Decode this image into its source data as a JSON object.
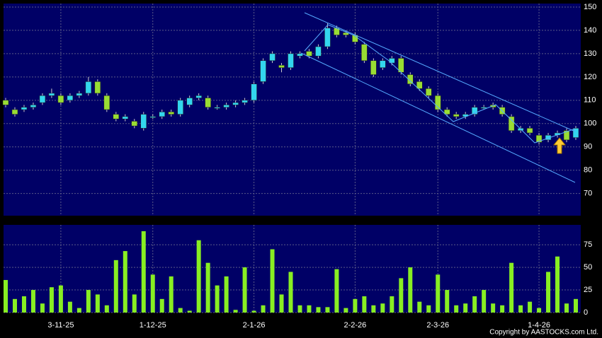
{
  "chart_data": [
    {
      "type": "candlestick",
      "categories": [
        null,
        null,
        null,
        null,
        null,
        null,
        "3-11-25",
        null,
        null,
        null,
        null,
        null,
        null,
        null,
        null,
        null,
        "1-12-25",
        null,
        null,
        null,
        null,
        null,
        null,
        null,
        null,
        null,
        null,
        "2-1-26",
        null,
        null,
        null,
        null,
        null,
        null,
        null,
        null,
        null,
        null,
        "2-2-26",
        null,
        null,
        null,
        null,
        null,
        null,
        null,
        null,
        "2-3-26",
        null,
        null,
        null,
        null,
        null,
        null,
        null,
        null,
        null,
        null,
        "1-4-26",
        null,
        null,
        null,
        null
      ],
      "open": [
        110,
        106,
        106,
        107,
        109,
        112,
        112,
        110,
        112,
        113,
        118,
        112,
        104,
        102,
        101,
        98,
        103,
        103,
        105,
        104,
        108,
        111,
        111,
        107,
        107,
        108,
        109,
        110,
        118,
        127,
        125,
        124,
        129,
        131,
        129,
        133,
        141,
        139,
        138,
        134,
        127,
        124,
        126,
        128,
        121,
        118,
        115,
        112,
        106,
        104,
        103,
        104,
        107,
        108,
        107,
        103,
        97,
        98,
        95,
        93,
        95,
        97,
        94
      ],
      "high": [
        111,
        107,
        108,
        109,
        113,
        115,
        113,
        113,
        114,
        120,
        119,
        113,
        105,
        104,
        102,
        105,
        104,
        106,
        106,
        111,
        112,
        113,
        112,
        108,
        109,
        110,
        111,
        118,
        128,
        131,
        126,
        131,
        131,
        132,
        134,
        143,
        142,
        140,
        139,
        135,
        128,
        128,
        129,
        129,
        122,
        119,
        116,
        113,
        107,
        105,
        105,
        108,
        108,
        109,
        108,
        104,
        99,
        99,
        96,
        96,
        97,
        98,
        99
      ],
      "low": [
        107,
        103,
        105,
        106,
        108,
        111,
        108,
        109,
        111,
        112,
        112,
        105,
        101,
        101,
        98,
        97,
        102,
        102,
        103,
        103,
        107,
        110,
        106,
        106,
        106,
        107,
        108,
        109,
        117,
        126,
        122,
        123,
        128,
        128,
        128,
        132,
        137,
        137,
        134,
        126,
        120,
        123,
        125,
        121,
        116,
        114,
        111,
        105,
        103,
        102,
        102,
        103,
        106,
        106,
        103,
        96,
        96,
        95,
        91,
        92,
        94,
        92,
        93
      ],
      "close": [
        108,
        104,
        107,
        108,
        112,
        113,
        109,
        112,
        113,
        118,
        113,
        106,
        102,
        103,
        99,
        104,
        103,
        105,
        104,
        110,
        111,
        112,
        107,
        107,
        108,
        109,
        110,
        117,
        127,
        130,
        124,
        130,
        130,
        129,
        133,
        141,
        138,
        138,
        135,
        127,
        121,
        127,
        128,
        122,
        117,
        115,
        112,
        106,
        104,
        103,
        104,
        107,
        107,
        107,
        104,
        97,
        98,
        96,
        92,
        95,
        96,
        93,
        98
      ],
      "up_color": "#33d6ee",
      "down_color": "#99dd33",
      "ylim": [
        60.5,
        151.5
      ],
      "yticks": [
        70,
        80,
        90,
        100,
        110,
        120,
        130,
        140,
        150
      ],
      "grid": true
    },
    {
      "type": "bar",
      "values": [
        36,
        15,
        18,
        25,
        10,
        28,
        30,
        12,
        5,
        25,
        20,
        8,
        58,
        68,
        20,
        90,
        42,
        15,
        40,
        5,
        2,
        80,
        55,
        30,
        40,
        3,
        50,
        2,
        8,
        70,
        20,
        45,
        8,
        8,
        6,
        6,
        48,
        5,
        15,
        18,
        8,
        10,
        18,
        38,
        50,
        12,
        8,
        42,
        25,
        8,
        10,
        18,
        25,
        10,
        8,
        55,
        8,
        12,
        5,
        45,
        62,
        10,
        15
      ],
      "color": "#88ee22",
      "ylim": [
        0,
        97
      ],
      "yticks": [
        0,
        25,
        50,
        75
      ],
      "grid": true
    }
  ],
  "copyright": "Copyright by AASTOCKS.com Ltd."
}
